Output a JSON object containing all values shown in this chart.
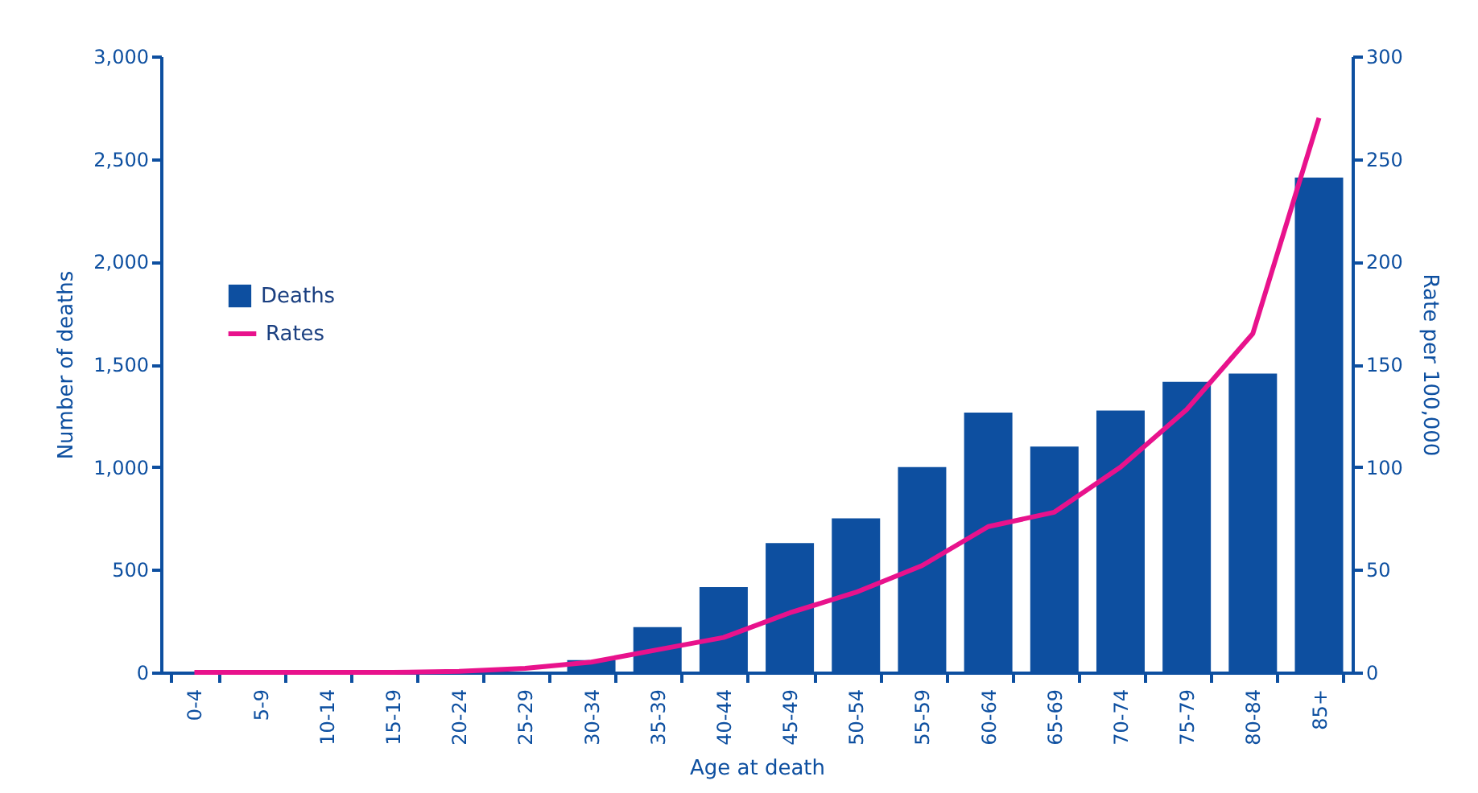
{
  "chart_data": {
    "type": "bar",
    "xlabel": "Age at death",
    "ylabel": "Number of deaths",
    "y2label": "Rate per 100,000",
    "categories": [
      "0-4",
      "5-9",
      "10-14",
      "15-19",
      "20-24",
      "25-29",
      "30-34",
      "35-39",
      "40-44",
      "45-49",
      "50-54",
      "55-59",
      "60-64",
      "65-69",
      "70-74",
      "75-79",
      "80-84",
      "85+"
    ],
    "series": [
      {
        "name": "Deaths",
        "color": "#0d4fa0",
        "values": [
          0,
          0,
          0,
          0,
          0,
          null,
          60,
          220,
          415,
          630,
          750,
          1000,
          1265,
          1100,
          1275,
          1415,
          1455,
          2410
        ]
      },
      {
        "name": "Rates",
        "type": "line",
        "axis": "y2",
        "color": "#e8128c",
        "values": [
          0,
          0,
          0,
          0,
          0.5,
          2,
          5,
          11,
          17,
          29,
          39,
          52,
          71,
          78,
          100,
          128,
          165,
          270
        ]
      }
    ],
    "ylim": [
      0,
      3000
    ],
    "yticks": [
      0,
      500,
      {
        "value": 1000,
        "label": "1,000"
      },
      {
        "value": 1500,
        "label": "1,500"
      },
      {
        "value": 2000,
        "label": "2,000"
      },
      {
        "value": 2500,
        "label": "2,500"
      },
      {
        "value": 3000,
        "label": "3,000"
      }
    ],
    "y2lim": [
      0,
      300
    ],
    "y2ticks": [
      0,
      50,
      100,
      150,
      200,
      250,
      300
    ],
    "grid": false,
    "legend": "top left",
    "marker": "none",
    "line_style": "solid"
  }
}
